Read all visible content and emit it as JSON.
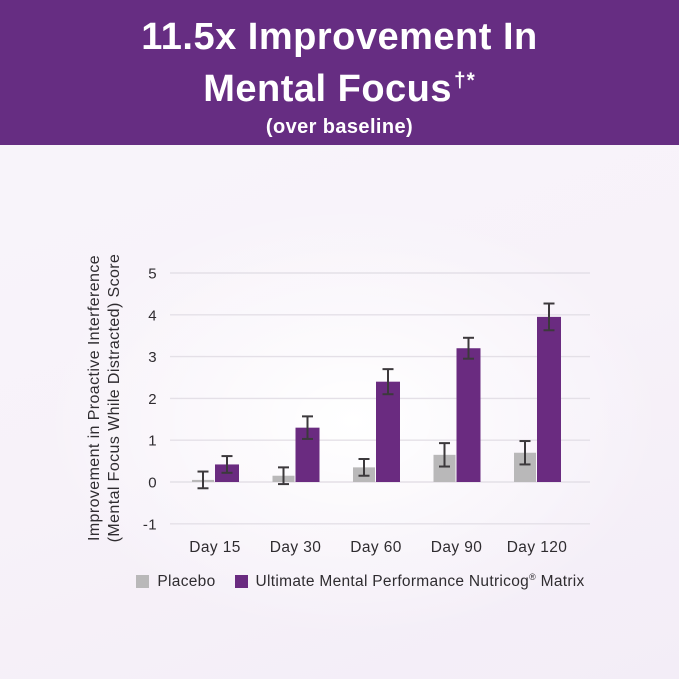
{
  "header": {
    "title_line1": "11.5x Improvement In",
    "title_line2": "Mental Focus",
    "title_marks": "†*",
    "subtitle": "(over baseline)"
  },
  "colors": {
    "banner_bg": "#662d82",
    "banner_text": "#ffffff",
    "bar_purple": "#6a2b80",
    "bar_gray": "#b9b8b9",
    "gridline": "#e4e0e7",
    "text": "#2f2c30",
    "error_bar": "#3c393c",
    "page_bg": "#f7f3f9"
  },
  "chart_data": {
    "type": "bar",
    "title": "",
    "xlabel": "",
    "ylabel_line1": "Improvement in Proactive Interference",
    "ylabel_line2": "(Mental Focus While Distracted) Score",
    "categories": [
      "Day 15",
      "Day 30",
      "Day 60",
      "Day 90",
      "Day 120"
    ],
    "series": [
      {
        "name": "Placebo",
        "label": {
          "pre": "Placebo",
          "sup": "",
          "post": ""
        },
        "color": "#b9b8b9",
        "values": [
          0.05,
          0.15,
          0.35,
          0.65,
          0.7
        ],
        "errors": [
          0.2,
          0.2,
          0.2,
          0.28,
          0.28
        ]
      },
      {
        "name": "Ultimate Mental Performance Nutricog® Matrix",
        "label": {
          "pre": "Ultimate Mental Performance Nutricog",
          "sup": "®",
          "post": " Matrix"
        },
        "color": "#6a2b80",
        "values": [
          0.42,
          1.3,
          2.4,
          3.2,
          3.95
        ],
        "errors": [
          0.2,
          0.27,
          0.3,
          0.25,
          0.32
        ]
      }
    ],
    "yticks": [
      5,
      4,
      3,
      2,
      1,
      0,
      -1
    ],
    "ylim": [
      -1,
      5
    ],
    "grid": true,
    "error_bars": true,
    "legend_position": "bottom"
  }
}
